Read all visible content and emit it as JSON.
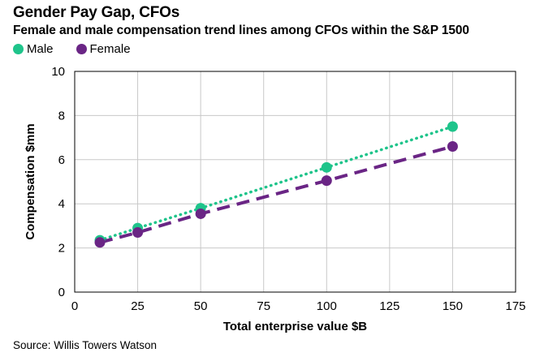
{
  "header": {
    "title": "Gender Pay Gap, CFOs",
    "subtitle": "Female and male compensation trend lines among CFOs within the S&P 1500"
  },
  "legend": [
    {
      "label": "Male",
      "color": "#1fc48b"
    },
    {
      "label": "Female",
      "color": "#6a2585"
    }
  ],
  "footer": {
    "source": "Source: Willis Towers Watson"
  },
  "chart_data": {
    "type": "line",
    "title": "Gender Pay Gap, CFOs",
    "subtitle": "Female and male compensation trend lines among CFOs within the S&P 1500",
    "xlabel": "Total enterprise value $B",
    "ylabel": "Compensation $mm",
    "xlim": [
      0,
      175
    ],
    "ylim": [
      0,
      10
    ],
    "xticks": [
      0,
      25,
      50,
      75,
      100,
      125,
      150,
      175
    ],
    "yticks": [
      0,
      2,
      4,
      6,
      8,
      10
    ],
    "grid": true,
    "legend_position": "top-left",
    "series": [
      {
        "name": "Male",
        "color": "#1fc48b",
        "line_style": "dotted",
        "x": [
          10,
          25,
          50,
          100,
          150
        ],
        "y": [
          2.35,
          2.9,
          3.8,
          5.65,
          7.5
        ]
      },
      {
        "name": "Female",
        "color": "#6a2585",
        "line_style": "dashed",
        "x": [
          10,
          25,
          50,
          100,
          150
        ],
        "y": [
          2.25,
          2.7,
          3.55,
          5.05,
          6.6
        ]
      }
    ]
  }
}
